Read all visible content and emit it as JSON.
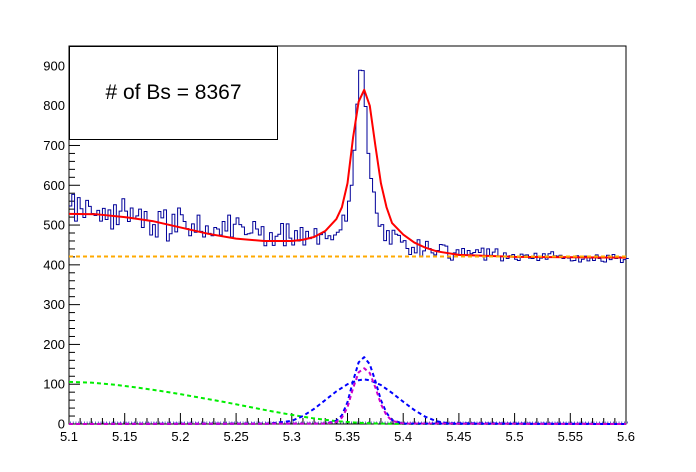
{
  "chart_data": {
    "type": "line",
    "title": "",
    "xlabel": "",
    "ylabel": "",
    "xlim": [
      5.1,
      5.6
    ],
    "ylim": [
      0,
      950
    ],
    "x_ticks": [
      "5.1",
      "5.15",
      "5.2",
      "5.25",
      "5.3",
      "5.35",
      "5.4",
      "5.45",
      "5.5",
      "5.55",
      "5.6"
    ],
    "y_ticks": [
      "0",
      "100",
      "200",
      "300",
      "400",
      "500",
      "600",
      "700",
      "800",
      "900"
    ],
    "grid": false,
    "annotation": "# of Bs = 8367",
    "histogram": {
      "bin_width": 0.0025,
      "color": "#000099",
      "x_start": 5.1,
      "counts": [
        548,
        577,
        510,
        569,
        541,
        519,
        562,
        547,
        529,
        524,
        537,
        510,
        542,
        514,
        538,
        490,
        551,
        501,
        535,
        566,
        535,
        509,
        543,
        516,
        523,
        540,
        494,
        534,
        511,
        475,
        501,
        470,
        534,
        518,
        538,
        460,
        478,
        527,
        483,
        543,
        526,
        509,
        491,
        473,
        503,
        482,
        525,
        484,
        470,
        498,
        479,
        473,
        494,
        490,
        475,
        509,
        485,
        525,
        470,
        502,
        518,
        501,
        495,
        476,
        478,
        480,
        509,
        490,
        475,
        496,
        448,
        459,
        481,
        449,
        472,
        477,
        504,
        448,
        503,
        467,
        450,
        486,
        460,
        494,
        450,
        484,
        466,
        470,
        491,
        452,
        476,
        481,
        466,
        473,
        463,
        475,
        482,
        488,
        525,
        510,
        560,
        600,
        688,
        804,
        889,
        888,
        798,
        680,
        617,
        583,
        530,
        497,
        501,
        461,
        486,
        452,
        487,
        477,
        474,
        457,
        461,
        441,
        426,
        444,
        430,
        463,
        420,
        435,
        459,
        441,
        430,
        425,
        436,
        451,
        450,
        447,
        417,
        412,
        430,
        438,
        424,
        441,
        424,
        436,
        428,
        431,
        438,
        431,
        442,
        412,
        440,
        424,
        432,
        440,
        420,
        410,
        430,
        416,
        423,
        426,
        414,
        411,
        427,
        424,
        425,
        417,
        416,
        429,
        411,
        417,
        428,
        414,
        428,
        433,
        423,
        422,
        424,
        416,
        420,
        417,
        410,
        411,
        423,
        407,
        414,
        422,
        410,
        417,
        411,
        425,
        416,
        409,
        407,
        424,
        413,
        426,
        416,
        420,
        406,
        413,
        416
      ]
    },
    "series": [
      {
        "name": "",
        "color": "#ff0000",
        "style": "solid",
        "x": [
          5.1,
          5.125,
          5.15,
          5.175,
          5.2,
          5.225,
          5.25,
          5.275,
          5.3,
          5.31,
          5.32,
          5.33,
          5.34,
          5.345,
          5.35,
          5.355,
          5.36,
          5.365,
          5.37,
          5.375,
          5.38,
          5.385,
          5.39,
          5.4,
          5.41,
          5.42,
          5.43,
          5.45,
          5.5,
          5.55,
          5.6
        ],
        "values": [
          528,
          527,
          520,
          510,
          494,
          478,
          466,
          460,
          460,
          463,
          470,
          485,
          515,
          545,
          605,
          720,
          810,
          840,
          800,
          700,
          605,
          545,
          505,
          476,
          456,
          443,
          434,
          425,
          420,
          419,
          418
        ]
      },
      {
        "name": "",
        "color": "#ffaa00",
        "style": "dashed",
        "x": [
          5.1,
          5.6
        ],
        "values": [
          421,
          421
        ]
      },
      {
        "name": "",
        "color": "#00ee00",
        "style": "dashed",
        "x": [
          5.1,
          5.12,
          5.14,
          5.16,
          5.18,
          5.2,
          5.22,
          5.24,
          5.26,
          5.28,
          5.3,
          5.32,
          5.34,
          5.36,
          5.38,
          5.4,
          5.45,
          5.5,
          5.6
        ],
        "values": [
          106,
          104,
          99,
          92,
          84,
          75,
          65,
          55,
          44,
          33,
          23,
          14,
          7,
          3,
          1,
          0,
          0,
          0,
          0
        ]
      },
      {
        "name": "",
        "color": "#0000ff",
        "style": "dashed",
        "x": [
          5.1,
          5.28,
          5.3,
          5.31,
          5.32,
          5.33,
          5.34,
          5.35,
          5.36,
          5.365,
          5.37,
          5.38,
          5.39,
          5.4,
          5.41,
          5.42,
          5.43,
          5.44,
          5.6
        ],
        "values": [
          0,
          1,
          8,
          20,
          38,
          60,
          82,
          100,
          110,
          112,
          110,
          98,
          78,
          56,
          35,
          18,
          7,
          2,
          0
        ]
      },
      {
        "name": "",
        "color": "#0000ff",
        "style": "dashed",
        "x": [
          5.1,
          5.33,
          5.34,
          5.345,
          5.35,
          5.355,
          5.36,
          5.365,
          5.37,
          5.375,
          5.38,
          5.385,
          5.39,
          5.4,
          5.6
        ],
        "values": [
          0,
          1,
          8,
          22,
          55,
          108,
          155,
          168,
          150,
          108,
          60,
          28,
          10,
          1,
          0
        ]
      },
      {
        "name": "",
        "color": "#cc00cc",
        "style": "dashed",
        "x": [
          5.1,
          5.33,
          5.34,
          5.345,
          5.35,
          5.355,
          5.36,
          5.365,
          5.37,
          5.375,
          5.38,
          5.385,
          5.39,
          5.4,
          5.6
        ],
        "values": [
          0,
          1,
          5,
          16,
          42,
          90,
          130,
          140,
          128,
          92,
          50,
          22,
          8,
          1,
          0
        ]
      }
    ]
  }
}
